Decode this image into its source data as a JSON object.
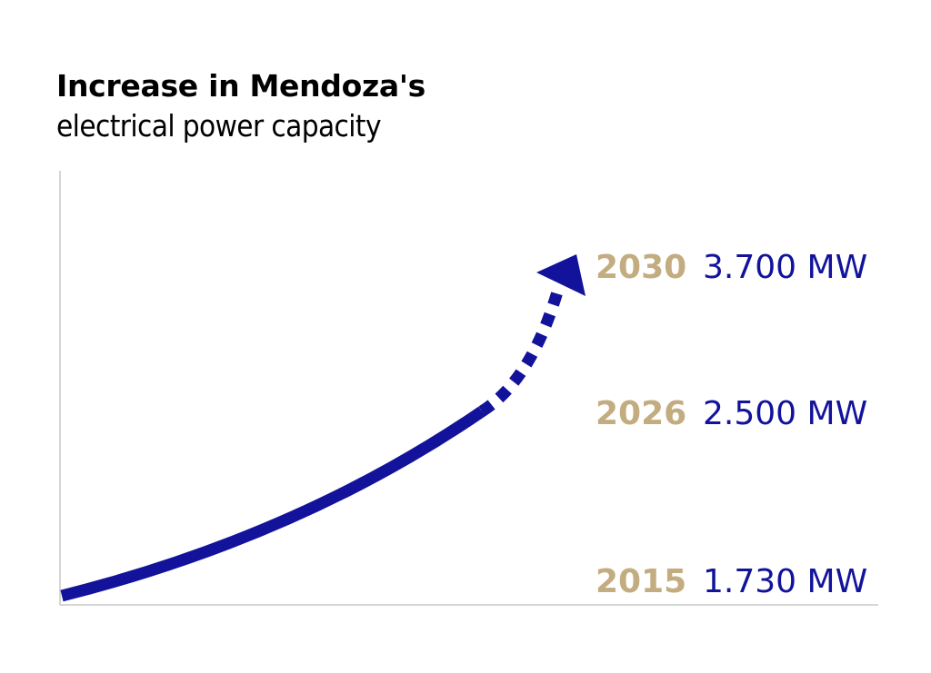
{
  "header": {
    "title": "Increase in Mendoza's",
    "subtitle": "electrical power capacity"
  },
  "colors": {
    "navy": "#12139a",
    "gold": "#c3ac80",
    "axis": "#c8c8c8"
  },
  "chart_data": {
    "type": "line",
    "title": "Increase in Mendoza's",
    "subtitle": "electrical power capacity",
    "xlabel": "",
    "ylabel": "",
    "grid": false,
    "x": [
      2015,
      2026,
      2030
    ],
    "series": [
      {
        "values": [
          1730,
          2500,
          3700
        ],
        "style_segments": [
          "solid",
          "dashed-arrow"
        ]
      }
    ],
    "annotations": [
      {
        "year": "2030",
        "value": "3.700 MW"
      },
      {
        "year": "2026",
        "value": "2.500 MW"
      },
      {
        "year": "2015",
        "value": "1.730 MW"
      }
    ]
  }
}
